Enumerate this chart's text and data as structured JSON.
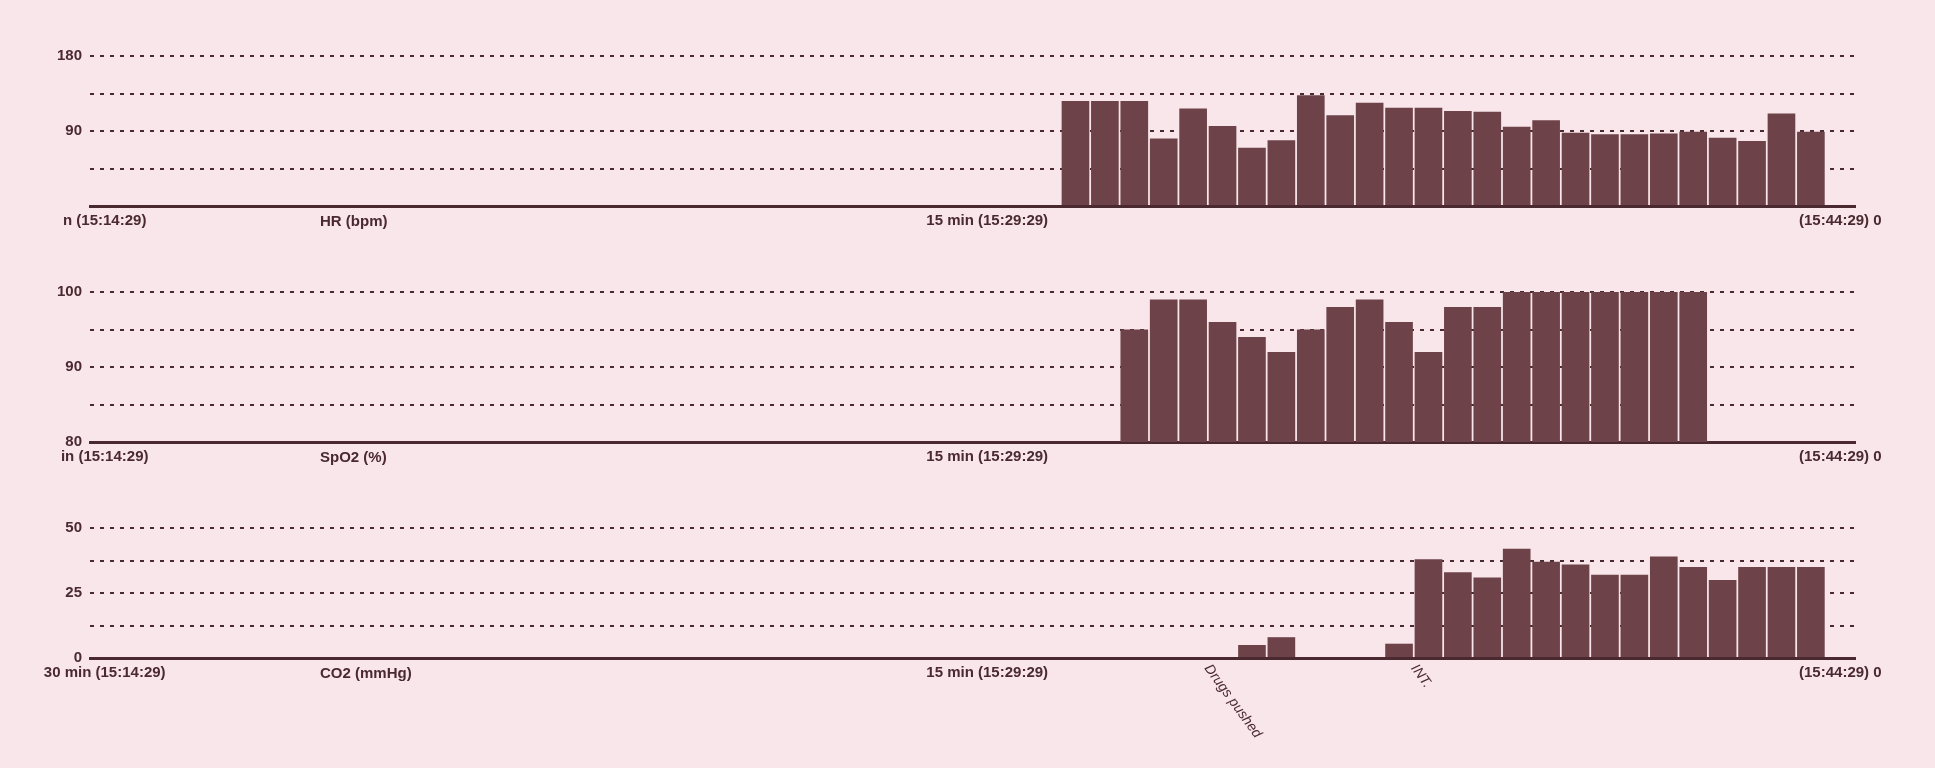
{
  "chart_data": [
    {
      "type": "bar",
      "title": "HR (bpm)",
      "categories": [
        "n (15:14:29)",
        null,
        null,
        null,
        null,
        null,
        null,
        null,
        null,
        null,
        null,
        null,
        null,
        null,
        null,
        null,
        null,
        null,
        null,
        null,
        null,
        null,
        null,
        null,
        null,
        null,
        null,
        null,
        null,
        null,
        "15 min (15:29:29)",
        null,
        null,
        null,
        null,
        null,
        null,
        null,
        null,
        null,
        null,
        null,
        null,
        null,
        null,
        null,
        null,
        null,
        null,
        null,
        null,
        null,
        null,
        null,
        null,
        null,
        null,
        null,
        null,
        "(15:44:29) 0"
      ],
      "ylim": [
        0,
        180
      ],
      "yticks": [
        {
          "value": 0,
          "label": null
        },
        {
          "value": 45,
          "label": null
        },
        90,
        {
          "value": 135,
          "label": null
        },
        180
      ],
      "grid": "y",
      "legend": false,
      "series": [
        {
          "color": "#6e4249",
          "values": [
            null,
            null,
            null,
            null,
            null,
            null,
            null,
            null,
            null,
            null,
            null,
            null,
            null,
            null,
            null,
            null,
            null,
            null,
            null,
            null,
            null,
            null,
            null,
            null,
            null,
            null,
            null,
            null,
            null,
            null,
            null,
            null,
            null,
            126,
            126,
            126,
            81,
            117,
            96,
            70,
            79,
            133,
            109,
            124,
            118,
            118,
            114,
            113,
            95,
            103,
            88,
            86,
            86,
            87,
            89,
            82,
            78,
            111,
            89,
            null
          ]
        }
      ]
    },
    {
      "type": "bar",
      "title": "SpO2 (%)",
      "categories": [
        "in (15:14:29)",
        null,
        null,
        null,
        null,
        null,
        null,
        null,
        null,
        null,
        null,
        null,
        null,
        null,
        null,
        null,
        null,
        null,
        null,
        null,
        null,
        null,
        null,
        null,
        null,
        null,
        null,
        null,
        null,
        null,
        "15 min (15:29:29)",
        null,
        null,
        null,
        null,
        null,
        null,
        null,
        null,
        null,
        null,
        null,
        null,
        null,
        null,
        null,
        null,
        null,
        null,
        null,
        null,
        null,
        null,
        null,
        null,
        null,
        null,
        null,
        null,
        "(15:44:29) 0"
      ],
      "ylim": [
        80,
        100
      ],
      "yticks": [
        80,
        {
          "value": 85,
          "label": null
        },
        90,
        {
          "value": 95,
          "label": null
        },
        100
      ],
      "grid": "y",
      "legend": false,
      "series": [
        {
          "color": "#6e4249",
          "values": [
            null,
            null,
            null,
            null,
            null,
            null,
            null,
            null,
            null,
            null,
            null,
            null,
            null,
            null,
            null,
            null,
            null,
            null,
            null,
            null,
            null,
            null,
            null,
            null,
            null,
            null,
            null,
            null,
            null,
            null,
            null,
            null,
            null,
            null,
            null,
            95,
            99,
            99,
            96,
            94,
            92,
            95,
            98,
            99,
            96,
            92,
            98,
            98,
            100,
            100,
            100,
            100,
            100,
            100,
            100,
            null,
            null,
            null,
            null,
            null
          ]
        }
      ]
    },
    {
      "type": "bar",
      "title": "CO2 (mmHg)",
      "categories": [
        "30 min (15:14:29)",
        null,
        null,
        null,
        null,
        null,
        null,
        null,
        null,
        null,
        null,
        null,
        null,
        null,
        null,
        null,
        null,
        null,
        null,
        null,
        null,
        null,
        null,
        null,
        null,
        null,
        null,
        null,
        null,
        null,
        "15 min (15:29:29)",
        null,
        null,
        null,
        null,
        null,
        null,
        null,
        null,
        null,
        null,
        null,
        null,
        null,
        null,
        null,
        null,
        null,
        null,
        null,
        null,
        null,
        null,
        null,
        null,
        null,
        null,
        null,
        null,
        "(15:44:29) 0"
      ],
      "ylim": [
        0,
        50
      ],
      "yticks": [
        0,
        {
          "value": 12.5,
          "label": null
        },
        25,
        {
          "value": 37.5,
          "label": null
        },
        50
      ],
      "grid": "y",
      "legend": false,
      "series": [
        {
          "color": "#6e4249",
          "values": [
            null,
            null,
            null,
            null,
            null,
            null,
            null,
            null,
            null,
            null,
            null,
            null,
            null,
            null,
            null,
            null,
            null,
            null,
            null,
            null,
            null,
            null,
            null,
            null,
            null,
            null,
            null,
            null,
            null,
            null,
            null,
            null,
            null,
            null,
            null,
            null,
            null,
            null,
            null,
            5,
            8,
            null,
            null,
            null,
            5.5,
            38,
            33,
            31,
            42,
            37,
            36,
            32,
            32,
            39,
            35,
            30,
            35,
            35,
            35,
            null
          ]
        }
      ],
      "annotations": [
        "Drugs pushed",
        "INT."
      ]
    }
  ]
}
